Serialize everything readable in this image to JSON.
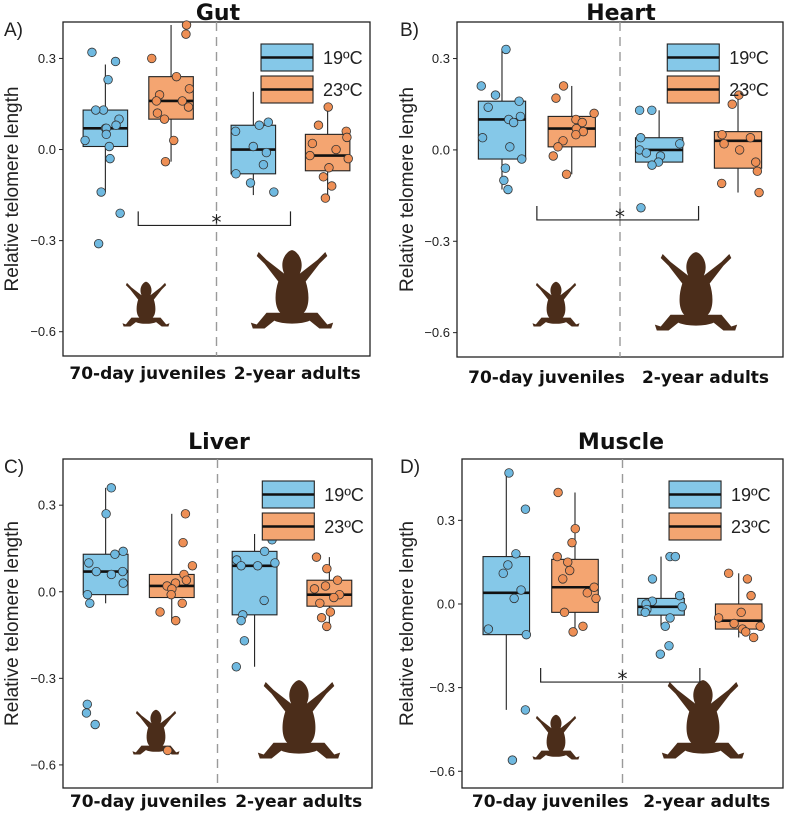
{
  "colors": {
    "cold": "#85c8e8",
    "warm": "#f4a571",
    "point_cold": "#6fb9e0",
    "point_warm": "#ee8f55",
    "frog": "#4b2d1a",
    "divider": "#9a9a9a"
  },
  "legend": {
    "entries": [
      "19ºC",
      "23ºC"
    ]
  },
  "panels": [
    {
      "label": "A)",
      "title": "Gut",
      "ylabel": "Relative telomere length",
      "groups": [
        "70-day juveniles",
        "2-year adults"
      ],
      "significance": "*"
    },
    {
      "label": "B)",
      "title": "Heart",
      "ylabel": "Relative telomere length",
      "groups": [
        "70-day juveniles",
        "2-year adults"
      ],
      "significance": "*"
    },
    {
      "label": "C)",
      "title": "Liver",
      "ylabel": "Relative telomere length",
      "groups": [
        "70-day juveniles",
        "2-year adults"
      ],
      "significance": ""
    },
    {
      "label": "D)",
      "title": "Muscle",
      "ylabel": "Relative telomere length",
      "groups": [
        "70-day juveniles",
        "2-year adults"
      ],
      "significance": "*"
    }
  ],
  "chart_data": [
    {
      "type": "box",
      "title": "Gut",
      "ylabel": "Relative telomere length",
      "yticks": [
        0.3,
        0.0,
        -0.3,
        -0.6
      ],
      "ytick_labels": [
        "0.3",
        "0.0",
        "−0.3",
        "−0.6"
      ],
      "ylim": [
        -0.68,
        0.42
      ],
      "categories": [
        "70-day juveniles",
        "2-year adults"
      ],
      "legend": [
        "19ºC",
        "23ºC"
      ],
      "boxes": [
        {
          "group": "70-day juveniles",
          "series": "19ºC",
          "whisker_low": -0.14,
          "q1": 0.01,
          "median": 0.07,
          "q3": 0.13,
          "whisker_high": 0.28,
          "points": [
            0.32,
            0.29,
            0.23,
            0.13,
            0.13,
            0.1,
            0.08,
            0.07,
            0.07,
            0.05,
            0.03,
            0.01,
            -0.03,
            -0.14,
            -0.21,
            -0.31
          ]
        },
        {
          "group": "70-day juveniles",
          "series": "23ºC",
          "whisker_low": -0.04,
          "q1": 0.1,
          "median": 0.16,
          "q3": 0.24,
          "whisker_high": 0.41,
          "points": [
            0.41,
            0.38,
            0.3,
            0.24,
            0.2,
            0.18,
            0.16,
            0.16,
            0.14,
            0.12,
            0.1,
            0.03,
            -0.04
          ]
        },
        {
          "group": "2-year adults",
          "series": "19ºC",
          "whisker_low": -0.15,
          "q1": -0.08,
          "median": 0.0,
          "q3": 0.08,
          "whisker_high": 0.19,
          "points": [
            0.19,
            0.09,
            0.08,
            0.06,
            0.01,
            -0.01,
            -0.05,
            -0.08,
            -0.11,
            -0.14
          ]
        },
        {
          "group": "2-year adults",
          "series": "23ºC",
          "whisker_low": -0.16,
          "q1": -0.07,
          "median": -0.02,
          "q3": 0.05,
          "whisker_high": 0.14,
          "points": [
            0.14,
            0.08,
            0.06,
            0.04,
            0.02,
            0.0,
            -0.02,
            -0.03,
            -0.06,
            -0.09,
            -0.12,
            -0.16
          ]
        }
      ],
      "significance": {
        "label": "*",
        "between": [
          "70-day juveniles",
          "2-year adults"
        ],
        "y": -0.25
      }
    },
    {
      "type": "box",
      "title": "Heart",
      "ylabel": "Relative telomere length",
      "yticks": [
        0.3,
        0.0,
        -0.3,
        -0.6
      ],
      "ytick_labels": [
        "0.3",
        "0.0",
        "−0.3",
        "−0.6"
      ],
      "ylim": [
        -0.68,
        0.42
      ],
      "categories": [
        "70-day juveniles",
        "2-year adults"
      ],
      "legend": [
        "19ºC",
        "23ºC"
      ],
      "boxes": [
        {
          "group": "70-day juveniles",
          "series": "19ºC",
          "whisker_low": -0.13,
          "q1": -0.03,
          "median": 0.1,
          "q3": 0.16,
          "whisker_high": 0.33,
          "points": [
            0.33,
            0.21,
            0.18,
            0.16,
            0.14,
            0.11,
            0.1,
            0.09,
            0.04,
            0.01,
            -0.03,
            -0.06,
            -0.1,
            -0.13
          ]
        },
        {
          "group": "70-day juveniles",
          "series": "23ºC",
          "whisker_low": -0.08,
          "q1": 0.01,
          "median": 0.07,
          "q3": 0.11,
          "whisker_high": 0.21,
          "points": [
            0.21,
            0.17,
            0.12,
            0.1,
            0.09,
            0.07,
            0.06,
            0.05,
            0.03,
            0.01,
            -0.02,
            -0.08
          ]
        },
        {
          "group": "2-year adults",
          "series": "19ºC",
          "whisker_low": -0.05,
          "q1": -0.04,
          "median": 0.0,
          "q3": 0.04,
          "whisker_high": 0.13,
          "points": [
            0.13,
            0.13,
            0.04,
            0.02,
            0.0,
            -0.01,
            -0.02,
            -0.04,
            -0.05,
            -0.19
          ]
        },
        {
          "group": "2-year adults",
          "series": "23ºC",
          "whisker_low": -0.14,
          "q1": -0.06,
          "median": 0.03,
          "q3": 0.06,
          "whisker_high": 0.18,
          "points": [
            0.18,
            0.15,
            0.05,
            0.04,
            0.02,
            0.0,
            -0.04,
            -0.07,
            -0.11,
            -0.14
          ]
        }
      ],
      "significance": {
        "label": "*",
        "between": [
          "70-day juveniles",
          "2-year adults"
        ],
        "y": -0.23
      }
    },
    {
      "type": "box",
      "title": "Liver",
      "ylabel": "Relative telomere length",
      "yticks": [
        0.3,
        0.0,
        -0.3,
        -0.6
      ],
      "ytick_labels": [
        "0.3",
        "0.0",
        "−0.3",
        "−0.6"
      ],
      "ylim": [
        -0.68,
        0.46
      ],
      "categories": [
        "70-day juveniles",
        "2-year adults"
      ],
      "legend": [
        "19ºC",
        "23ºC"
      ],
      "boxes": [
        {
          "group": "70-day juveniles",
          "series": "19ºC",
          "whisker_low": -0.04,
          "q1": -0.01,
          "median": 0.07,
          "q3": 0.13,
          "whisker_high": 0.36,
          "points": [
            0.36,
            0.27,
            0.14,
            0.13,
            0.1,
            0.07,
            0.07,
            0.06,
            0.03,
            -0.01,
            -0.04,
            -0.39,
            -0.42,
            -0.46
          ]
        },
        {
          "group": "70-day juveniles",
          "series": "23ºC",
          "whisker_low": -0.1,
          "q1": -0.02,
          "median": 0.02,
          "q3": 0.06,
          "whisker_high": 0.27,
          "points": [
            0.27,
            0.17,
            0.09,
            0.06,
            0.04,
            0.03,
            0.02,
            0.01,
            -0.01,
            -0.04,
            -0.07,
            -0.1,
            -0.55
          ]
        },
        {
          "group": "2-year adults",
          "series": "19ºC",
          "whisker_low": -0.26,
          "q1": -0.08,
          "median": 0.09,
          "q3": 0.14,
          "whisker_high": 0.2,
          "points": [
            0.2,
            0.18,
            0.14,
            0.11,
            0.1,
            0.09,
            0.09,
            -0.03,
            -0.08,
            -0.1,
            -0.17,
            -0.26
          ]
        },
        {
          "group": "2-year adults",
          "series": "23ºC",
          "whisker_low": -0.12,
          "q1": -0.05,
          "median": -0.01,
          "q3": 0.04,
          "whisker_high": 0.12,
          "points": [
            0.12,
            0.08,
            0.04,
            0.02,
            0.01,
            -0.01,
            -0.02,
            -0.04,
            -0.07,
            -0.09,
            -0.12
          ]
        }
      ],
      "significance": null
    },
    {
      "type": "box",
      "title": "Muscle",
      "ylabel": "Relative telomere length",
      "yticks": [
        0.3,
        0.0,
        -0.3,
        -0.6
      ],
      "ytick_labels": [
        "0.3",
        "0.0",
        "−0.3",
        "−0.6"
      ],
      "ylim": [
        -0.66,
        0.52
      ],
      "categories": [
        "70-day juveniles",
        "2-year adults"
      ],
      "legend": [
        "19ºC",
        "23ºC"
      ],
      "boxes": [
        {
          "group": "70-day juveniles",
          "series": "19ºC",
          "whisker_low": -0.38,
          "q1": -0.11,
          "median": 0.04,
          "q3": 0.17,
          "whisker_high": 0.47,
          "points": [
            0.47,
            0.34,
            0.18,
            0.14,
            0.11,
            0.05,
            0.02,
            -0.09,
            -0.11,
            -0.38,
            -0.56
          ]
        },
        {
          "group": "70-day juveniles",
          "series": "23ºC",
          "whisker_low": -0.1,
          "q1": -0.03,
          "median": 0.06,
          "q3": 0.16,
          "whisker_high": 0.4,
          "points": [
            0.4,
            0.27,
            0.22,
            0.17,
            0.15,
            0.12,
            0.09,
            0.06,
            0.04,
            0.02,
            -0.03,
            -0.08,
            -0.1
          ]
        },
        {
          "group": "2-year adults",
          "series": "19ºC",
          "whisker_low": -0.08,
          "q1": -0.04,
          "median": -0.01,
          "q3": 0.02,
          "whisker_high": 0.17,
          "points": [
            0.17,
            0.17,
            0.09,
            0.03,
            0.01,
            0.0,
            -0.01,
            -0.02,
            -0.03,
            -0.05,
            -0.08,
            -0.15,
            -0.18
          ]
        },
        {
          "group": "2-year adults",
          "series": "23ºC",
          "whisker_low": -0.12,
          "q1": -0.09,
          "median": -0.06,
          "q3": 0.0,
          "whisker_high": 0.11,
          "points": [
            0.11,
            0.09,
            0.03,
            -0.03,
            -0.05,
            -0.07,
            -0.08,
            -0.09,
            -0.1,
            -0.12
          ]
        }
      ],
      "significance": {
        "label": "*",
        "between": [
          "70-day juveniles",
          "2-year adults"
        ],
        "y": -0.28
      }
    }
  ]
}
